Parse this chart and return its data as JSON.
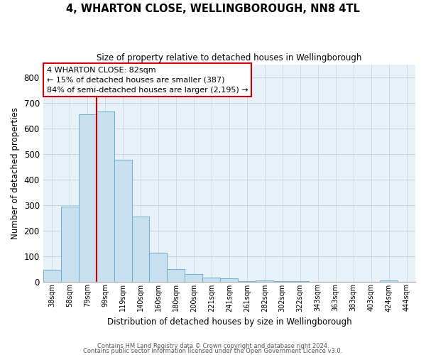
{
  "title": "4, WHARTON CLOSE, WELLINGBOROUGH, NN8 4TL",
  "subtitle": "Size of property relative to detached houses in Wellingborough",
  "xlabel": "Distribution of detached houses by size in Wellingborough",
  "ylabel": "Number of detached properties",
  "bar_labels": [
    "38sqm",
    "58sqm",
    "79sqm",
    "99sqm",
    "119sqm",
    "140sqm",
    "160sqm",
    "180sqm",
    "200sqm",
    "221sqm",
    "241sqm",
    "261sqm",
    "282sqm",
    "302sqm",
    "322sqm",
    "343sqm",
    "363sqm",
    "383sqm",
    "403sqm",
    "424sqm",
    "444sqm"
  ],
  "bar_values": [
    47,
    293,
    654,
    666,
    477,
    253,
    113,
    48,
    28,
    15,
    13,
    1,
    5,
    1,
    1,
    0,
    0,
    0,
    0,
    5,
    0
  ],
  "bar_color": "#c8dff0",
  "bar_edge_color": "#6aaed6",
  "highlight_bar_index": 2,
  "highlight_color": "#cc0000",
  "annotation_title": "4 WHARTON CLOSE: 82sqm",
  "annotation_line1": "← 15% of detached houses are smaller (387)",
  "annotation_line2": "84% of semi-detached houses are larger (2,195) →",
  "annotation_box_color": "#ffffff",
  "annotation_box_edge": "#cc0000",
  "ylim": [
    0,
    850
  ],
  "yticks": [
    0,
    100,
    200,
    300,
    400,
    500,
    600,
    700,
    800
  ],
  "footer1": "Contains HM Land Registry data © Crown copyright and database right 2024.",
  "footer2": "Contains public sector information licensed under the Open Government Licence v3.0.",
  "bg_color": "#ffffff",
  "plot_bg_color": "#e8f0f8",
  "grid_color": "#c8d4e0"
}
